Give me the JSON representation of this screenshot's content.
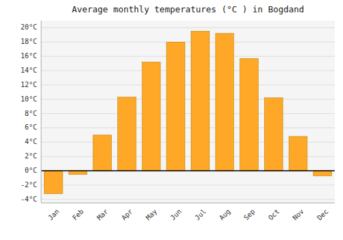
{
  "chart_data": {
    "type": "bar",
    "title": "Average monthly temperatures (°C ) in Bogdand",
    "categories": [
      "Jan",
      "Feb",
      "Mar",
      "Apr",
      "May",
      "Jun",
      "Jul",
      "Aug",
      "Sep",
      "Oct",
      "Nov",
      "Dec"
    ],
    "values": [
      -3.2,
      -0.5,
      5.0,
      10.3,
      15.2,
      18.0,
      19.5,
      19.2,
      15.7,
      10.2,
      4.8,
      -0.7
    ],
    "color": "#FFA726",
    "ylim": [
      -4.5,
      21
    ],
    "yticks": [
      {
        "value": -4,
        "label": "-4°C"
      },
      {
        "value": -2,
        "label": "-2°C"
      },
      {
        "value": 0,
        "label": "0°C"
      },
      {
        "value": 2,
        "label": "2°C"
      },
      {
        "value": 4,
        "label": "4°C"
      },
      {
        "value": 6,
        "label": "6°C"
      },
      {
        "value": 8,
        "label": "8°C"
      },
      {
        "value": 10,
        "label": "10°C"
      },
      {
        "value": 12,
        "label": "12°C"
      },
      {
        "value": 14,
        "label": "14°C"
      },
      {
        "value": 16,
        "label": "16°C"
      },
      {
        "value": 18,
        "label": "18°C"
      },
      {
        "value": 20,
        "label": "20°C"
      }
    ],
    "grid": true
  }
}
